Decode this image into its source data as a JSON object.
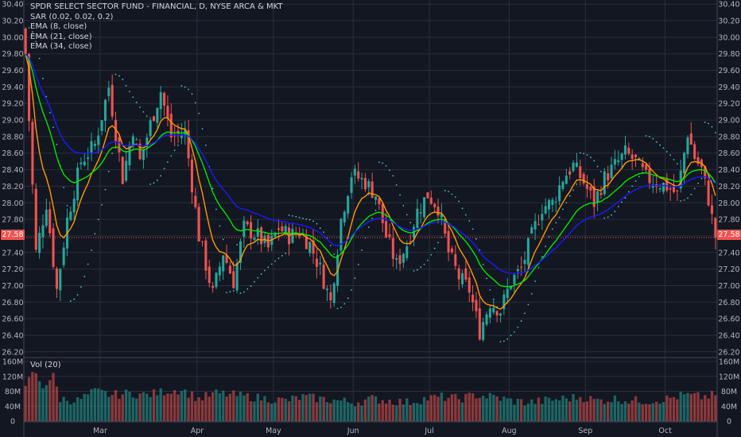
{
  "legend": {
    "title": "SPDR SELECT SECTOR FUND - FINANCIAL, D, NYSE ARCA & MKT",
    "sar": "SAR (0.02, 0.02, 0.2)",
    "ema8": "EMA (8, close)",
    "ema21": "EMA (21, close)",
    "ema34": "EMA (34, close)"
  },
  "volume_legend": "Vol (20)",
  "last_price_label": "27.58",
  "colors": {
    "background": "#131722",
    "grid": "#2a2e39",
    "up": "#26a69a",
    "down": "#ef5350",
    "ema8": "#ff9800",
    "ema21": "#00e600",
    "ema34": "#1a1aff",
    "sar": "#4fc3c3",
    "axis_text": "#b2b5be"
  },
  "chart_data": {
    "type": "candlestick",
    "title": "SPDR SELECT SECTOR FUND - FINANCIAL, D, NYSE ARCA & MKT",
    "x_axis_labels": [
      "Mar",
      "Apr",
      "May",
      "Jun",
      "Jul",
      "Aug",
      "Sep",
      "Oct"
    ],
    "y_axis_labels": [
      "30.40",
      "30.20",
      "30.00",
      "29.80",
      "29.60",
      "29.40",
      "29.20",
      "29.00",
      "28.80",
      "28.60",
      "28.40",
      "28.20",
      "28.00",
      "27.80",
      "27.60",
      "27.40",
      "27.20",
      "27.00",
      "26.80",
      "26.60",
      "26.40",
      "26.20"
    ],
    "ylim": [
      26.15,
      30.45
    ],
    "volume_axis_labels": [
      "160M",
      "120M",
      "80M",
      "40M",
      "0"
    ],
    "volume_ylim": [
      0,
      160
    ],
    "last_price": 27.58,
    "indicators": [
      "SAR (0.02, 0.02, 0.2)",
      "EMA (8, close)",
      "EMA (21, close)",
      "EMA (34, close)"
    ],
    "volume_indicator": "Vol (20)",
    "anchors": [
      [
        0,
        29.8
      ],
      [
        3,
        27.4
      ],
      [
        6,
        28.0
      ],
      [
        9,
        26.95
      ],
      [
        12,
        27.8
      ],
      [
        16,
        28.5
      ],
      [
        20,
        28.7
      ],
      [
        24,
        29.4
      ],
      [
        28,
        28.3
      ],
      [
        31,
        28.9
      ],
      [
        33,
        28.5
      ],
      [
        36,
        28.95
      ],
      [
        39,
        29.35
      ],
      [
        42,
        28.8
      ],
      [
        46,
        28.85
      ],
      [
        50,
        27.6
      ],
      [
        54,
        26.9
      ],
      [
        57,
        27.4
      ],
      [
        60,
        27.05
      ],
      [
        63,
        27.7
      ],
      [
        67,
        27.6
      ],
      [
        70,
        27.45
      ],
      [
        73,
        27.7
      ],
      [
        76,
        27.6
      ],
      [
        79,
        27.65
      ],
      [
        82,
        27.5
      ],
      [
        85,
        27.2
      ],
      [
        88,
        26.8
      ],
      [
        91,
        27.8
      ],
      [
        94,
        28.35
      ],
      [
        98,
        28.25
      ],
      [
        101,
        28.1
      ],
      [
        104,
        27.6
      ],
      [
        107,
        27.25
      ],
      [
        110,
        27.5
      ],
      [
        113,
        27.9
      ],
      [
        116,
        28.1
      ],
      [
        119,
        27.95
      ],
      [
        122,
        27.4
      ],
      [
        125,
        27.1
      ],
      [
        128,
        26.95
      ],
      [
        131,
        26.45
      ],
      [
        134,
        26.8
      ],
      [
        137,
        26.7
      ],
      [
        140,
        27.05
      ],
      [
        143,
        27.2
      ],
      [
        146,
        27.6
      ],
      [
        149,
        27.95
      ],
      [
        152,
        28.0
      ],
      [
        155,
        28.3
      ],
      [
        158,
        28.45
      ],
      [
        161,
        28.25
      ],
      [
        164,
        28.0
      ],
      [
        167,
        28.3
      ],
      [
        170,
        28.45
      ],
      [
        173,
        28.6
      ],
      [
        176,
        28.5
      ],
      [
        179,
        28.3
      ],
      [
        182,
        28.25
      ],
      [
        185,
        28.2
      ],
      [
        188,
        28.1
      ],
      [
        191,
        28.85
      ],
      [
        193,
        28.55
      ],
      [
        195,
        28.4
      ],
      [
        197,
        28.05
      ],
      [
        199,
        27.58
      ]
    ],
    "volume_anchors": [
      [
        0,
        85
      ],
      [
        2,
        135
      ],
      [
        5,
        95
      ],
      [
        8,
        120
      ],
      [
        10,
        60
      ],
      [
        15,
        55
      ],
      [
        20,
        80
      ],
      [
        25,
        70
      ],
      [
        30,
        75
      ],
      [
        35,
        70
      ],
      [
        40,
        80
      ],
      [
        45,
        85
      ],
      [
        50,
        60
      ],
      [
        55,
        75
      ],
      [
        60,
        70
      ],
      [
        65,
        65
      ],
      [
        70,
        60
      ],
      [
        75,
        55
      ],
      [
        80,
        65
      ],
      [
        85,
        60
      ],
      [
        90,
        55
      ],
      [
        95,
        50
      ],
      [
        100,
        60
      ],
      [
        105,
        55
      ],
      [
        110,
        50
      ],
      [
        115,
        60
      ],
      [
        120,
        65
      ],
      [
        125,
        60
      ],
      [
        130,
        70
      ],
      [
        135,
        65
      ],
      [
        140,
        55
      ],
      [
        145,
        50
      ],
      [
        150,
        55
      ],
      [
        155,
        60
      ],
      [
        160,
        65
      ],
      [
        165,
        55
      ],
      [
        170,
        60
      ],
      [
        175,
        55
      ],
      [
        180,
        55
      ],
      [
        185,
        60
      ],
      [
        190,
        70
      ],
      [
        195,
        65
      ],
      [
        199,
        70
      ]
    ]
  }
}
